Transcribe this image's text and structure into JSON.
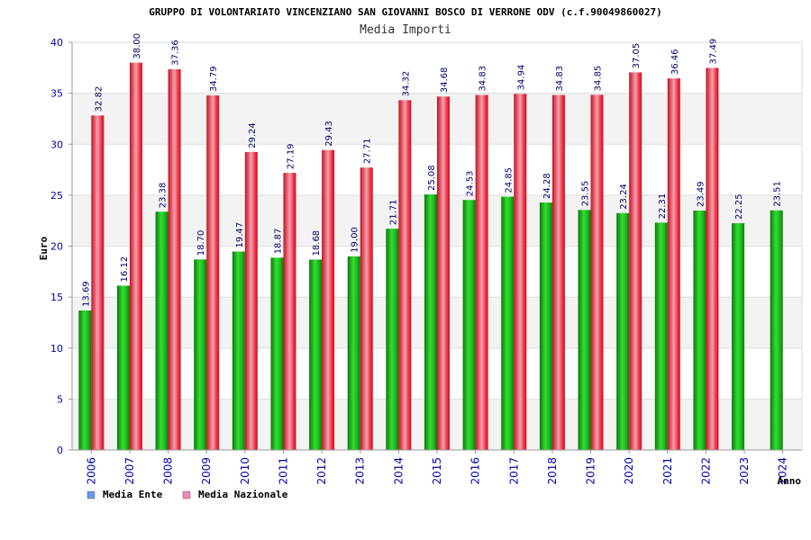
{
  "chart_data": {
    "type": "bar",
    "title": "GRUPPO DI VOLONTARIATO VINCENZIANO SAN GIOVANNI BOSCO DI VERRONE ODV (c.f.90049860027)",
    "subtitle": "Media Importi",
    "xlabel": "Anno",
    "ylabel": "Euro",
    "ylim": [
      0,
      40
    ],
    "yticks": [
      0,
      5,
      10,
      15,
      20,
      25,
      30,
      35,
      40
    ],
    "grid": true,
    "legend_position": "bottom-left",
    "categories": [
      "2006",
      "2007",
      "2008",
      "2009",
      "2010",
      "2011",
      "2012",
      "2013",
      "2014",
      "2015",
      "2016",
      "2017",
      "2018",
      "2019",
      "2020",
      "2021",
      "2022",
      "2023",
      "2024"
    ],
    "series": [
      {
        "name": "Media Ente",
        "color": "#22bb22",
        "legend_color": "#6699ee",
        "values": [
          13.69,
          16.12,
          23.38,
          18.7,
          19.47,
          18.87,
          18.68,
          19.0,
          21.71,
          25.08,
          24.53,
          24.85,
          24.28,
          23.55,
          23.24,
          22.31,
          23.49,
          22.25,
          23.51
        ],
        "labels": [
          "13.69",
          "16.12",
          "23.38",
          "18.70",
          "19.47",
          "18.87",
          "18.68",
          "19.00",
          "21.71",
          "25.08",
          "24.53",
          "24.85",
          "24.28",
          "23.55",
          "23.24",
          "22.31",
          "23.49",
          "22.25",
          "23.51"
        ]
      },
      {
        "name": "Media Nazionale",
        "color": "#ee2233",
        "legend_color": "#ee88bb",
        "values": [
          32.82,
          38.0,
          37.36,
          34.79,
          29.24,
          27.19,
          29.43,
          27.71,
          34.32,
          34.68,
          34.83,
          34.94,
          34.83,
          34.85,
          37.05,
          36.46,
          37.49,
          null,
          null
        ],
        "labels": [
          "32.82",
          "38.00",
          "37.36",
          "34.79",
          "29.24",
          "27.19",
          "29.43",
          "27.71",
          "34.32",
          "34.68",
          "34.83",
          "34.94",
          "34.83",
          "34.85",
          "37.05",
          "36.46",
          "37.49",
          "",
          ""
        ]
      }
    ]
  }
}
